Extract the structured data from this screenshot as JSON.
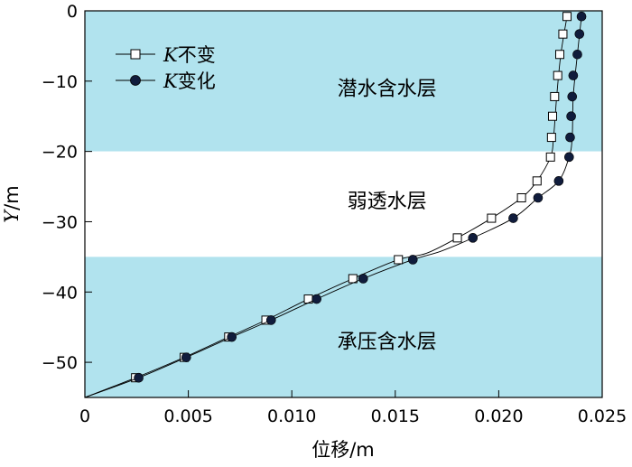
{
  "chart_data": {
    "type": "line",
    "xlabel": "位移/m",
    "ylabel_italic": "Y",
    "ylabel_rest": "/m",
    "xlim": [
      0,
      0.025
    ],
    "ylim": [
      -55,
      0
    ],
    "x_ticks": [
      0,
      0.005,
      0.01,
      0.015,
      0.02,
      0.025
    ],
    "x_tick_labels": [
      "0",
      "0.005",
      "0.010",
      "0.015",
      "0.020",
      "0.025"
    ],
    "y_ticks": [
      0,
      -10,
      -20,
      -30,
      -40,
      -50
    ],
    "y_tick_labels": [
      "0",
      "−10",
      "−20",
      "−30",
      "−40",
      "−50"
    ],
    "layers": [
      {
        "label": "潜水含水层",
        "y_top": 0,
        "y_bottom": -20,
        "color": "#b1e3ee",
        "label_x": 0.0146,
        "label_y": -11
      },
      {
        "label": "弱透水层",
        "y_top": -20,
        "y_bottom": -35,
        "color": "#ffffff",
        "label_x": 0.0146,
        "label_y": -27
      },
      {
        "label": "承压含水层",
        "y_top": -35,
        "y_bottom": -55,
        "color": "#b1e3ee",
        "label_x": 0.0146,
        "label_y": -47
      }
    ],
    "series": [
      {
        "name_italic": "K",
        "name_rest": "不变",
        "marker": "square-open",
        "curve": [
          [
            0,
            -55
          ],
          [
            0.00245,
            -52.2
          ],
          [
            0.0048,
            -49.3
          ],
          [
            0.00695,
            -46.4
          ],
          [
            0.00875,
            -44
          ],
          [
            0.0108,
            -41
          ],
          [
            0.01295,
            -38.1
          ],
          [
            0.01515,
            -35.4
          ],
          [
            0.0165,
            -34.5
          ],
          [
            0.018,
            -32.3
          ],
          [
            0.01965,
            -29.5
          ],
          [
            0.0211,
            -26.6
          ],
          [
            0.02185,
            -24.2
          ],
          [
            0.0225,
            -20.8
          ],
          [
            0.02265,
            -18
          ],
          [
            0.0228,
            -12.2
          ],
          [
            0.023,
            -6.2
          ],
          [
            0.0233,
            -0.8
          ]
        ],
        "markers": [
          [
            0.00245,
            -52.2
          ],
          [
            0.0048,
            -49.3
          ],
          [
            0.00695,
            -46.4
          ],
          [
            0.00875,
            -44
          ],
          [
            0.0108,
            -41
          ],
          [
            0.01295,
            -38.1
          ],
          [
            0.01515,
            -35.4
          ],
          [
            0.018,
            -32.3
          ],
          [
            0.01965,
            -29.5
          ],
          [
            0.0211,
            -26.6
          ],
          [
            0.02185,
            -24.2
          ],
          [
            0.0225,
            -20.8
          ],
          [
            0.02255,
            -18
          ],
          [
            0.0226,
            -15
          ],
          [
            0.0227,
            -12.2
          ],
          [
            0.02285,
            -9.2
          ],
          [
            0.02295,
            -6.2
          ],
          [
            0.0231,
            -3.3
          ],
          [
            0.0233,
            -0.8
          ]
        ]
      },
      {
        "name_italic": "K",
        "name_rest": "变化",
        "marker": "circle-filled",
        "curve": [
          [
            0,
            -55
          ],
          [
            0.0026,
            -52.2
          ],
          [
            0.0049,
            -49.3
          ],
          [
            0.0071,
            -46.4
          ],
          [
            0.009,
            -44
          ],
          [
            0.0112,
            -41
          ],
          [
            0.01345,
            -38.1
          ],
          [
            0.01585,
            -35.4
          ],
          [
            0.0172,
            -34.2
          ],
          [
            0.01875,
            -32.3
          ],
          [
            0.0207,
            -29.5
          ],
          [
            0.0219,
            -26.6
          ],
          [
            0.0229,
            -24.2
          ],
          [
            0.0234,
            -20.8
          ],
          [
            0.02355,
            -18
          ],
          [
            0.0236,
            -12.2
          ],
          [
            0.0238,
            -6.2
          ],
          [
            0.024,
            -0.8
          ]
        ],
        "markers": [
          [
            0.0026,
            -52.2
          ],
          [
            0.0049,
            -49.3
          ],
          [
            0.0071,
            -46.4
          ],
          [
            0.009,
            -44
          ],
          [
            0.0112,
            -41
          ],
          [
            0.01345,
            -38.1
          ],
          [
            0.01585,
            -35.4
          ],
          [
            0.01875,
            -32.3
          ],
          [
            0.0207,
            -29.5
          ],
          [
            0.0219,
            -26.6
          ],
          [
            0.0229,
            -24.2
          ],
          [
            0.0234,
            -20.8
          ],
          [
            0.02345,
            -18
          ],
          [
            0.0235,
            -15
          ],
          [
            0.02355,
            -12.2
          ],
          [
            0.0236,
            -9.2
          ],
          [
            0.0238,
            -6.2
          ],
          [
            0.0239,
            -3.3
          ],
          [
            0.024,
            -0.8
          ]
        ]
      }
    ],
    "legend_position": "top-left",
    "grid": false
  }
}
